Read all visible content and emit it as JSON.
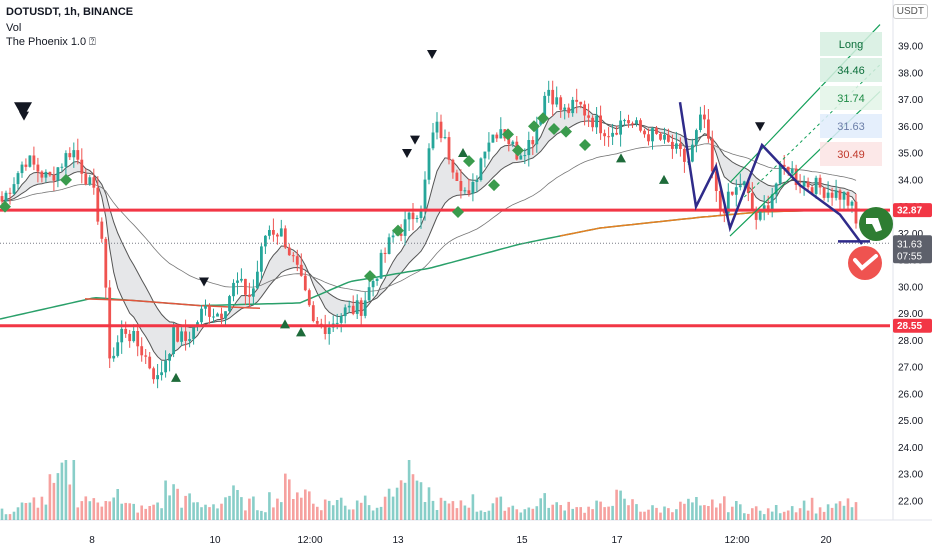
{
  "header": {
    "symbol_line": "DOTUSDT, 1h, BINANCE",
    "vol_label": "Vol",
    "indicator_label": "The Phoenix 1.0 ⍰"
  },
  "currency": "USDT",
  "colors": {
    "up": "#26a69a",
    "down": "#ef5350",
    "level": "#f23645",
    "ema_fast": "#2aa06a",
    "ema_slow": "#e67e22",
    "pattern": "#2f2b8a",
    "channel": "#14a05a",
    "signal": "#2e9e52"
  },
  "chart_data": {
    "type": "candlestick",
    "title": "DOTUSDT, 1h, BINANCE",
    "y_ticks": [
      "39.00",
      "38.00",
      "37.00",
      "36.00",
      "35.00",
      "34.00",
      "33.00",
      "32.00",
      "31.00",
      "30.00",
      "29.00",
      "28.00",
      "27.00",
      "26.00",
      "25.00",
      "24.00",
      "23.00",
      "22.00"
    ],
    "x_ticks": [
      "8",
      "10",
      "12:00",
      "13",
      "15",
      "17",
      "12:00",
      "20"
    ],
    "levels": [
      {
        "name": "resistance",
        "value": 32.87,
        "label": "32.87"
      },
      {
        "name": "support",
        "value": 28.55,
        "label": "28.55"
      }
    ],
    "last_price": {
      "value": 31.63,
      "label": "31.63",
      "countdown": "07:55"
    },
    "targets": [
      {
        "label": "Long"
      },
      {
        "label": "34.46"
      },
      {
        "label": "31.74"
      },
      {
        "label": "31.63"
      },
      {
        "label": "30.49"
      }
    ],
    "anchor_prices": [
      [
        0,
        33.2
      ],
      [
        15,
        34.8
      ],
      [
        30,
        34.0
      ],
      [
        45,
        35.2
      ],
      [
        55,
        34.0
      ],
      [
        60,
        33.2
      ],
      [
        65,
        31.5
      ],
      [
        68,
        28.0
      ],
      [
        70,
        27.2
      ],
      [
        78,
        28.5
      ],
      [
        90,
        27.6
      ],
      [
        100,
        26.5
      ],
      [
        110,
        28.2
      ],
      [
        118,
        28.0
      ],
      [
        130,
        29.2
      ],
      [
        140,
        29.0
      ],
      [
        150,
        30.2
      ],
      [
        160,
        29.6
      ],
      [
        170,
        32.2
      ],
      [
        180,
        32.0
      ],
      [
        190,
        30.5
      ],
      [
        200,
        28.5
      ],
      [
        210,
        28.6
      ],
      [
        220,
        29.1
      ],
      [
        230,
        29.2
      ],
      [
        240,
        30.5
      ],
      [
        250,
        31.8
      ],
      [
        260,
        32.4
      ],
      [
        270,
        33.2
      ],
      [
        275,
        35.5
      ],
      [
        280,
        36.0
      ],
      [
        290,
        34.5
      ],
      [
        300,
        33.2
      ],
      [
        310,
        35.4
      ],
      [
        320,
        36.0
      ],
      [
        330,
        35.0
      ],
      [
        340,
        35.5
      ],
      [
        350,
        37.5
      ],
      [
        360,
        36.5
      ],
      [
        370,
        36.8
      ],
      [
        380,
        36.2
      ],
      [
        390,
        35.8
      ],
      [
        400,
        36.3
      ],
      [
        410,
        35.8
      ],
      [
        420,
        35.6
      ],
      [
        430,
        35.2
      ],
      [
        440,
        34.6
      ],
      [
        450,
        36.5
      ],
      [
        455,
        34.5
      ],
      [
        460,
        32.8
      ],
      [
        470,
        33.5
      ],
      [
        475,
        34.0
      ],
      [
        480,
        33.1
      ],
      [
        485,
        32.4
      ],
      [
        490,
        33.0
      ],
      [
        500,
        34.3
      ],
      [
        505,
        34.5
      ],
      [
        510,
        34.0
      ],
      [
        520,
        33.8
      ],
      [
        530,
        33.6
      ],
      [
        540,
        33.4
      ],
      [
        545,
        33.0
      ],
      [
        548,
        32.3
      ]
    ],
    "volume_profile": [
      0.15,
      0.25,
      0.35,
      0.6,
      0.9,
      0.4,
      0.3,
      0.5,
      0.25,
      0.2,
      0.3,
      0.55,
      0.35,
      0.25,
      0.3,
      0.45,
      0.3,
      0.25,
      0.4,
      0.6,
      0.5,
      0.3,
      0.35,
      0.25,
      0.4,
      0.3,
      0.6,
      0.85,
      0.5,
      0.3,
      0.25,
      0.35,
      0.2,
      0.3,
      0.25,
      0.2,
      0.35,
      0.25,
      0.3,
      0.2,
      0.25,
      0.4,
      0.3,
      0.2,
      0.2,
      0.25,
      0.3,
      0.2,
      0.3,
      0.25,
      0.2,
      0.15,
      0.2,
      0.25,
      0.3,
      0.2,
      0.25,
      0.3
    ],
    "pattern_points": [
      [
        33.0,
        0
      ],
      [
        36.2,
        0
      ],
      [
        33.0,
        0
      ],
      [
        34.5,
        0
      ],
      [
        32.2,
        0
      ],
      [
        35.3,
        0
      ],
      [
        33.6,
        0
      ],
      [
        31.6,
        0
      ]
    ],
    "grid": false
  }
}
